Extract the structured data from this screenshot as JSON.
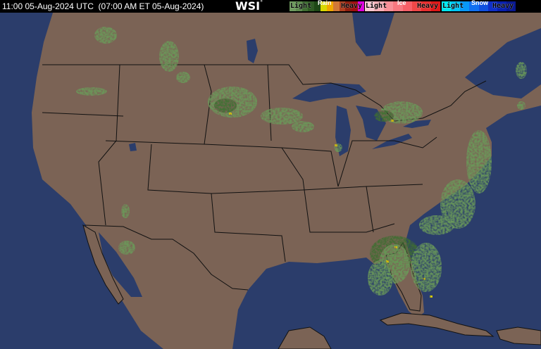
{
  "header": {
    "timestamp": "11:00 05-Aug-2024 UTC  (07:00 AM ET 05-Aug-2024)",
    "logo": "WSI",
    "logo_mark": "°"
  },
  "legend": {
    "rain": {
      "title": "Rain",
      "light": "Light",
      "heavy": "Heavy",
      "colors": [
        "#6e9a5e",
        "#5d8a4e",
        "#3f6e32",
        "#2f5a24",
        "#1e4816",
        "#d8d800",
        "#f0a800",
        "#d07838",
        "#b04020",
        "#902010",
        "#a01010",
        "#e000e0"
      ]
    },
    "ice": {
      "title": "Ice",
      "light": "Light",
      "heavy": "Heavy",
      "colors": [
        "#f8c8d0",
        "#f8b0b8",
        "#f89098",
        "#f87880",
        "#f86068",
        "#f04848",
        "#e83030",
        "#e01818"
      ]
    },
    "snow": {
      "title": "Snow",
      "light": "Light",
      "heavy": "Heavy",
      "colors": [
        "#00e8f0",
        "#00c8f8",
        "#0898f8",
        "#1070f0",
        "#1050e0",
        "#1030c8",
        "#0820b0",
        "#081890"
      ]
    }
  },
  "map": {
    "land_color": "#7b6355",
    "water_color": "#2b3d6b",
    "border_color": "#111111",
    "precip_light": "#6a9a5a",
    "precip_mod": "#3f6e32",
    "precip_heavy": "#e0d000"
  }
}
